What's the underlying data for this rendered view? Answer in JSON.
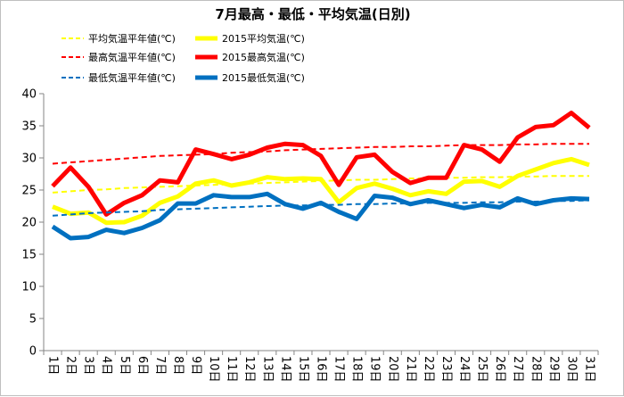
{
  "chart_data": {
    "type": "line",
    "title": "7月最高・最低・平均気温(日別)",
    "xlabel": "",
    "ylabel": "",
    "ylim": [
      0,
      40
    ],
    "yticks": [
      0,
      5,
      10,
      15,
      20,
      25,
      30,
      35,
      40
    ],
    "grid": false,
    "legend_position": "top",
    "categories": [
      "1日",
      "2日",
      "3日",
      "4日",
      "5日",
      "6日",
      "7日",
      "8日",
      "9日",
      "10日",
      "11日",
      "12日",
      "13日",
      "14日",
      "15日",
      "16日",
      "17日",
      "18日",
      "19日",
      "20日",
      "21日",
      "22日",
      "23日",
      "24日",
      "25日",
      "26日",
      "27日",
      "28日",
      "29日",
      "30日",
      "31日"
    ],
    "series": [
      {
        "name": "平均気温平年値(℃)",
        "color": "#ffff00",
        "style": "dashed",
        "values": [
          24.6,
          24.8,
          25.0,
          25.1,
          25.3,
          25.4,
          25.5,
          25.6,
          25.7,
          25.8,
          25.9,
          26.0,
          26.1,
          26.2,
          26.3,
          26.4,
          26.5,
          26.6,
          26.6,
          26.7,
          26.8,
          26.8,
          26.9,
          26.9,
          27.0,
          27.0,
          27.1,
          27.1,
          27.2,
          27.2,
          27.2
        ]
      },
      {
        "name": "2015平均気温(℃)",
        "color": "#ffff00",
        "style": "solid",
        "values": [
          22.4,
          21.3,
          21.5,
          19.9,
          20.0,
          21.0,
          23.0,
          24.0,
          26.0,
          26.5,
          25.7,
          26.2,
          27.0,
          26.7,
          26.8,
          26.7,
          23.1,
          25.3,
          26.0,
          25.2,
          24.2,
          24.8,
          24.4,
          26.3,
          26.4,
          25.5,
          27.2,
          28.2,
          29.2,
          29.8,
          28.9
        ]
      },
      {
        "name": "最高気温平年値(℃)",
        "color": "#ff0000",
        "style": "dashed",
        "values": [
          29.1,
          29.3,
          29.5,
          29.7,
          29.9,
          30.1,
          30.3,
          30.4,
          30.5,
          30.6,
          30.8,
          30.9,
          31.0,
          31.2,
          31.3,
          31.4,
          31.5,
          31.6,
          31.7,
          31.7,
          31.8,
          31.8,
          31.9,
          32.0,
          32.0,
          32.0,
          32.1,
          32.1,
          32.2,
          32.2,
          32.2
        ]
      },
      {
        "name": "2015最高気温(℃)",
        "color": "#ff0000",
        "style": "solid",
        "values": [
          25.6,
          28.5,
          25.5,
          21.2,
          23.0,
          24.2,
          26.5,
          26.2,
          31.3,
          30.6,
          29.8,
          30.5,
          31.6,
          32.2,
          32.0,
          30.3,
          25.8,
          30.1,
          30.5,
          27.8,
          26.1,
          26.9,
          26.9,
          32.0,
          31.3,
          29.4,
          33.2,
          34.8,
          35.1,
          37.0,
          34.7
        ]
      },
      {
        "name": "最低気温平年値(℃)",
        "color": "#0070c0",
        "style": "dashed",
        "values": [
          21.0,
          21.2,
          21.4,
          21.5,
          21.6,
          21.7,
          21.9,
          22.0,
          22.1,
          22.2,
          22.3,
          22.4,
          22.5,
          22.6,
          22.6,
          22.7,
          22.7,
          22.8,
          22.8,
          22.9,
          22.9,
          23.0,
          23.0,
          23.0,
          23.1,
          23.1,
          23.2,
          23.2,
          23.3,
          23.3,
          23.4
        ]
      },
      {
        "name": "2015最低気温(℃)",
        "color": "#0070c0",
        "style": "solid",
        "values": [
          19.3,
          17.5,
          17.7,
          18.8,
          18.3,
          19.1,
          20.3,
          22.9,
          22.9,
          24.2,
          23.9,
          23.9,
          24.4,
          22.8,
          22.1,
          23.0,
          21.6,
          20.5,
          24.1,
          23.8,
          22.8,
          23.4,
          22.8,
          22.2,
          22.7,
          22.3,
          23.7,
          22.8,
          23.4,
          23.7,
          23.6
        ]
      }
    ]
  }
}
